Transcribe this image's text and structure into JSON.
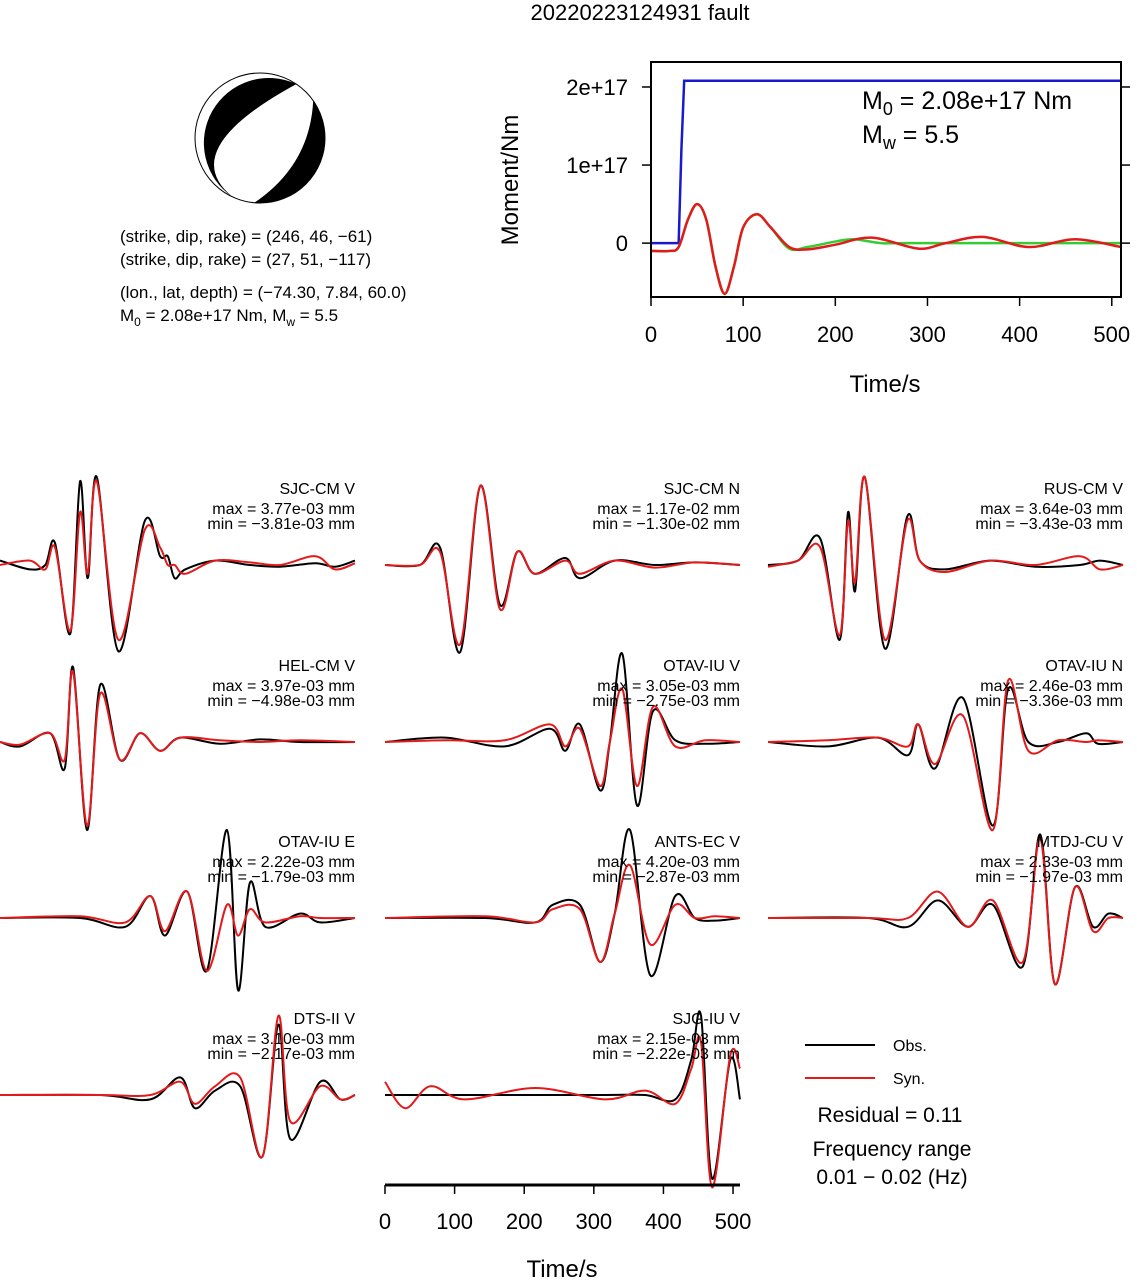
{
  "title": "20220223124931 fault",
  "source": {
    "lines": [
      "(strike, dip, rake) = (246, 46, −61)",
      "(strike, dip, rake) = (27, 51, −117)",
      "(lon., lat, depth) = (−74.30, 7.84, 60.0)"
    ],
    "moment": [
      {
        "text": "M"
      },
      {
        "text": "0",
        "sub": true
      },
      {
        "text": " = 2.08e+17 Nm, M"
      },
      {
        "text": "w",
        "sub": true
      },
      {
        "text": " = 5.5"
      }
    ]
  },
  "chart_data": [
    {
      "type": "line",
      "xlabel": "Time/s",
      "ylabel": "Moment/Nm",
      "xlim": [
        0,
        510
      ],
      "xticks": [
        0,
        100,
        200,
        300,
        400,
        500
      ],
      "ylim": [
        -6.9e+16,
        2.32e+17
      ],
      "yticks": [
        0,
        {
          "value": 1e+17,
          "label": "1e+17"
        },
        {
          "value": 2e+17,
          "label": "2e+17"
        }
      ],
      "annotations": [
        [
          {
            "text": "M"
          },
          {
            "text": "0",
            "sub": true
          },
          {
            "text": " = 2.08e+17 Nm"
          }
        ],
        [
          {
            "text": "M"
          },
          {
            "text": "w",
            "sub": true
          },
          {
            "text": " = 5.5"
          }
        ]
      ],
      "series": [
        {
          "color": "#1a1acc",
          "interpolation": "linear",
          "x": [
            0,
            30,
            33,
            36,
            510
          ],
          "values": [
            0,
            0,
            1.2e+17,
            2.08e+17,
            2.08e+17
          ]
        },
        {
          "color": "#33cc33",
          "interpolation": "smooth",
          "x": [
            0,
            20,
            30,
            40,
            50,
            60,
            70,
            80,
            90,
            100,
            115,
            130,
            150,
            170,
            200,
            220,
            250,
            280,
            510
          ],
          "values": [
            -1e+16,
            -1e+16,
            -5000000000000000.0,
            3e+16,
            5e+16,
            3e+16,
            -3e+16,
            -6.5e+16,
            -3e+16,
            2e+16,
            3.7e+16,
            2e+16,
            -7000000000000000.0,
            -5000000000000000.0,
            2000000000000000.0,
            5000000000000000.0,
            0,
            0,
            0
          ]
        },
        {
          "color": "#e31a1c",
          "interpolation": "smooth",
          "x": [
            0,
            20,
            30,
            40,
            50,
            60,
            70,
            80,
            90,
            100,
            115,
            130,
            150,
            170,
            200,
            240,
            290,
            320,
            360,
            410,
            460,
            510
          ],
          "values": [
            -1e+16,
            -1e+16,
            -5000000000000000.0,
            3e+16,
            5e+16,
            3e+16,
            -3e+16,
            -6.5e+16,
            -3e+16,
            2e+16,
            3.7e+16,
            2e+16,
            -5000000000000000.0,
            -8000000000000000.0,
            -2000000000000000.0,
            7000000000000000.0,
            -7000000000000000.0,
            0,
            8000000000000000.0,
            -5000000000000000.0,
            5000000000000000.0,
            -5000000000000000.0
          ]
        }
      ]
    },
    {
      "type": "waveforms",
      "xlabel": "Time/s",
      "xlim": [
        0,
        510
      ],
      "xticks": [
        0,
        100,
        200,
        300,
        400,
        500
      ],
      "ylim": [
        -1,
        1
      ],
      "legend": [
        {
          "name": "Obs.",
          "color": "#000000"
        },
        {
          "name": "Syn.",
          "color": "#e31a1c"
        }
      ],
      "residual": "Residual = 0.11",
      "frequency": [
        "Frequency range",
        "0.01 − 0.02 (Hz)"
      ],
      "panels": [
        {
          "title": "SJC-CM V",
          "max": "max = 3.77e-03 mm",
          "min": "min = −3.81e-03 mm",
          "x": [
            0,
            43,
            65,
            79,
            101,
            115,
            126,
            139,
            170,
            208,
            230,
            241,
            251,
            266,
            309,
            359,
            402,
            453,
            481,
            510
          ],
          "series": [
            {
              "values": [
                0.05,
                -0.05,
                0,
                0.25,
                -0.78,
                0.95,
                -0.15,
                1.0,
                -0.98,
                0.5,
                0.1,
                0.1,
                -0.15,
                -0.05,
                0.05,
                0,
                -0.02,
                0.02,
                -0.02,
                0.05
              ]
            },
            {
              "values": [
                0,
                0.05,
                -0.05,
                0.2,
                -0.75,
                0.6,
                -0.1,
                0.95,
                -0.85,
                0.4,
                0.2,
                0,
                0,
                -0.1,
                0.05,
                0.03,
                0,
                0.1,
                -0.05,
                0.02
              ]
            }
          ]
        },
        {
          "title": "SJC-CM N",
          "max": "max = 1.17e-02 mm",
          "min": "min = −1.30e-02 mm",
          "x": [
            0,
            50,
            79,
            108,
            137,
            165,
            190,
            215,
            259,
            280,
            330,
            388,
            445,
            510
          ],
          "series": [
            {
              "values": [
                0,
                0,
                0.2,
                -0.99,
                0.9,
                -0.45,
                0.15,
                -0.1,
                0.08,
                -0.15,
                0.05,
                0,
                0.03,
                0
              ]
            },
            {
              "values": [
                0,
                0,
                0.15,
                -0.9,
                0.9,
                -0.5,
                0.15,
                -0.1,
                0.05,
                -0.1,
                0.05,
                -0.03,
                0.03,
                0
              ]
            }
          ]
        },
        {
          "title": "RUS-CM V",
          "max": "max = 3.64e-03 mm",
          "min": "min = −3.43e-03 mm",
          "x": [
            0,
            43,
            75,
            103,
            115,
            125,
            139,
            168,
            200,
            218,
            254,
            319,
            384,
            448,
            477,
            510
          ],
          "series": [
            {
              "values": [
                0,
                0.05,
                0.3,
                -0.85,
                0.6,
                -0.3,
                1.0,
                -0.95,
                0.55,
                0.05,
                -0.05,
                0.05,
                -0.02,
                0,
                0.05,
                0
              ]
            },
            {
              "values": [
                -0.02,
                0.05,
                0.2,
                -0.8,
                0.5,
                -0.2,
                1.0,
                -0.85,
                0.5,
                0.05,
                -0.08,
                0.05,
                0,
                0.1,
                -0.05,
                0
              ]
            }
          ]
        },
        {
          "title": "HEL-CM V",
          "max": "max = 3.97e-03 mm",
          "min": "min = −4.98e-03 mm",
          "x": [
            0,
            29,
            72,
            93,
            105,
            125,
            144,
            172,
            201,
            230,
            259,
            316,
            374,
            431,
            510
          ],
          "series": [
            {
              "values": [
                0,
                -0.05,
                0.1,
                -0.3,
                0.85,
                -1.0,
                0.65,
                -0.2,
                0.1,
                -0.1,
                0.05,
                -0.02,
                0.03,
                0,
                0
              ]
            },
            {
              "values": [
                0,
                -0.03,
                0.1,
                -0.2,
                0.8,
                -0.95,
                0.55,
                -0.2,
                0.1,
                -0.1,
                0.05,
                0.02,
                0,
                0.02,
                0
              ]
            }
          ]
        },
        {
          "title": "OTAV-IU V",
          "max": "max = 3.05e-03 mm",
          "min": "min = −2.75e-03 mm",
          "x": [
            0,
            86,
            172,
            237,
            259,
            280,
            309,
            323,
            341,
            362,
            385,
            417,
            460,
            510
          ],
          "series": [
            {
              "values": [
                0,
                0.05,
                -0.05,
                0.15,
                -0.1,
                0.2,
                -0.55,
                0,
                1.0,
                -0.72,
                0.35,
                0.02,
                -0.02,
                0
              ]
            },
            {
              "values": [
                0,
                0.02,
                0.02,
                0.2,
                -0.05,
                0.15,
                -0.5,
                0,
                0.6,
                -0.5,
                0.4,
                -0.05,
                0.02,
                0
              ]
            }
          ]
        },
        {
          "title": "OTAV-IU N",
          "max": "max = 2.46e-03 mm",
          "min": "min = −3.36e-03 mm",
          "x": [
            0,
            86,
            158,
            201,
            216,
            240,
            280,
            323,
            345,
            374,
            417,
            457,
            474,
            510
          ],
          "series": [
            {
              "values": [
                0,
                -0.05,
                0.05,
                -0.15,
                0.2,
                -0.3,
                0.5,
                -0.95,
                0.6,
                0,
                0,
                0.1,
                -0.02,
                0
              ]
            },
            {
              "values": [
                0,
                0.02,
                0.05,
                -0.05,
                0.2,
                -0.25,
                0.3,
                -1.0,
                0.7,
                -0.1,
                0.02,
                0,
                0.02,
                0
              ]
            }
          ]
        },
        {
          "title": "OTAV-IU E",
          "max": "max = 2.22e-03 mm",
          "min": "min = −1.79e-03 mm",
          "x": [
            0,
            115,
            180,
            216,
            237,
            269,
            297,
            326,
            342,
            359,
            381,
            431,
            460,
            510
          ],
          "series": [
            {
              "values": [
                0,
                0,
                -0.1,
                0.25,
                -0.2,
                0.3,
                -0.6,
                1.0,
                -0.82,
                0.4,
                -0.1,
                0.05,
                -0.05,
                0
              ]
            },
            {
              "values": [
                0,
                0.02,
                -0.05,
                0.25,
                -0.15,
                0.3,
                -0.6,
                0.15,
                -0.2,
                0.1,
                -0.05,
                0.02,
                0,
                0
              ]
            }
          ]
        },
        {
          "title": "ANTS-EC V",
          "max": "max = 4.20e-03 mm",
          "min": "min = −2.87e-03 mm",
          "x": [
            0,
            144,
            216,
            241,
            280,
            309,
            330,
            352,
            381,
            417,
            445,
            474,
            510
          ],
          "series": [
            {
              "values": [
                0,
                0,
                -0.05,
                0.15,
                0.15,
                -0.5,
                0.05,
                1.0,
                -0.65,
                0.25,
                0,
                -0.03,
                0
              ]
            },
            {
              "values": [
                0,
                0.02,
                -0.05,
                0.1,
                0.1,
                -0.5,
                0.05,
                0.6,
                -0.3,
                0.15,
                0,
                0.02,
                0
              ]
            }
          ]
        },
        {
          "title": "MTDJ-CU V",
          "max": "max = 2.33e-03 mm",
          "min": "min = −1.97e-03 mm",
          "x": [
            0,
            144,
            201,
            244,
            287,
            323,
            366,
            391,
            412,
            441,
            467,
            489,
            510
          ],
          "series": [
            {
              "values": [
                0,
                0,
                -0.1,
                0.2,
                -0.1,
                0.15,
                -0.55,
                0.95,
                -0.75,
                0.35,
                -0.1,
                0.05,
                0
              ]
            },
            {
              "values": [
                0,
                0,
                0,
                0.3,
                -0.1,
                0.2,
                -0.5,
                0.9,
                -0.75,
                0.35,
                -0.15,
                0,
                0
              ]
            }
          ]
        },
        {
          "title": "DTS-II V",
          "max": "max = 3.10e-03 mm",
          "min": "min = −2.17e-03 mm",
          "x": [
            0,
            144,
            216,
            259,
            280,
            309,
            345,
            377,
            400,
            417,
            460,
            489,
            510
          ],
          "series": [
            {
              "values": [
                0,
                0,
                -0.05,
                0.2,
                -0.15,
                0.05,
                0.1,
                -0.7,
                0.8,
                -0.5,
                0.15,
                -0.05,
                0
              ]
            },
            {
              "values": [
                0,
                0,
                0,
                0.15,
                -0.1,
                0.1,
                0.2,
                -0.7,
                0.9,
                -0.3,
                0.1,
                -0.05,
                0
              ]
            }
          ]
        },
        {
          "title": "SJG-IU V",
          "max": "max = 2.15e-03 mm",
          "min": "min = −2.22e-03 mm",
          "x": [
            0,
            29,
            65,
            115,
            216,
            316,
            374,
            417,
            440,
            454,
            470,
            496,
            510
          ],
          "series": [
            {
              "values": [
                0,
                0,
                0,
                0,
                0,
                0,
                0,
                -0.05,
                0.4,
                0.9,
                -0.95,
                0.4,
                -0.05
              ]
            },
            {
              "values": [
                0.15,
                -0.15,
                0.1,
                -0.05,
                0.08,
                -0.05,
                0.05,
                -0.1,
                0.3,
                0.6,
                -1.05,
                0.45,
                0.3
              ]
            }
          ]
        }
      ]
    }
  ]
}
